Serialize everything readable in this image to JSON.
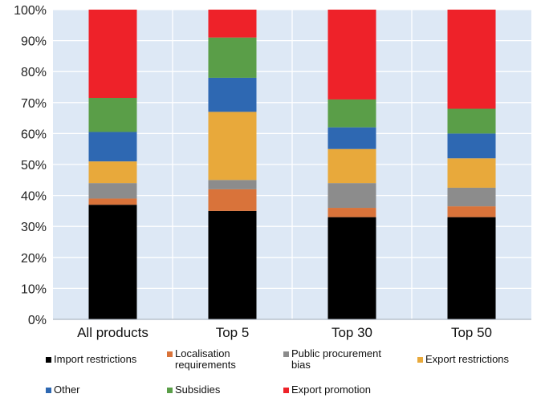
{
  "chart_data": {
    "type": "bar",
    "stacked": true,
    "title": "",
    "xlabel": "",
    "ylabel": "",
    "ylim": [
      0,
      100
    ],
    "y_ticks": [
      "0%",
      "10%",
      "20%",
      "30%",
      "40%",
      "50%",
      "60%",
      "70%",
      "80%",
      "90%",
      "100%"
    ],
    "categories": [
      "All products",
      "Top 5",
      "Top 30",
      "Top 50"
    ],
    "series": [
      {
        "name": "Import restrictions",
        "color": "#000000",
        "values": [
          37,
          35,
          33,
          33
        ]
      },
      {
        "name": "Localisation requirements",
        "color": "#d9733a",
        "values": [
          2,
          7,
          3,
          3.5
        ]
      },
      {
        "name": "Public procurement bias",
        "color": "#8c8c8c",
        "values": [
          5,
          3,
          8,
          6
        ]
      },
      {
        "name": "Export restrictions",
        "color": "#e8a93b",
        "values": [
          7,
          22,
          11,
          9.5
        ]
      },
      {
        "name": "Other",
        "color": "#2e68b2",
        "values": [
          9.5,
          11,
          7,
          8
        ]
      },
      {
        "name": "Subsidies",
        "color": "#5a9e48",
        "values": [
          11,
          13,
          9,
          8
        ]
      },
      {
        "name": "Export promotion",
        "color": "#ee2229",
        "values": [
          28.5,
          9,
          29,
          32
        ]
      }
    ],
    "legend": {
      "position": "bottom",
      "labels": [
        "Import restrictions",
        "Localisation\nrequirements",
        "Public procurement\nbias",
        "Export restrictions",
        "Other",
        "Subsidies",
        "Export promotion"
      ]
    },
    "plot_background": "#dde8f5",
    "grid": true
  }
}
